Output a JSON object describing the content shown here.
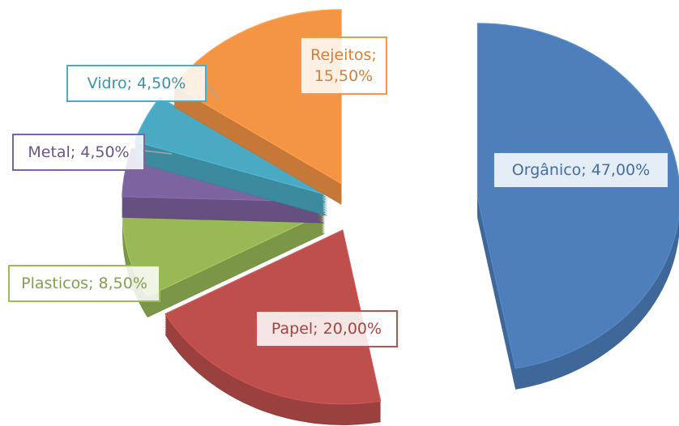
{
  "chart_data": {
    "type": "pie",
    "values": [
      47.0,
      20.0,
      8.5,
      4.5,
      4.5,
      15.5
    ],
    "value_labels": [
      "Orgânico; 47,00%",
      "Papel; 20,00%",
      "Plasticos; 8,50%",
      "Metal; 4,50%",
      "Vidro; 4,50%",
      "Rejeitos; 15,50%"
    ],
    "colors": [
      "#4f81bd",
      "#c0504d",
      "#9bbb59",
      "#8064a2",
      "#4bacc6",
      "#f79646"
    ]
  }
}
